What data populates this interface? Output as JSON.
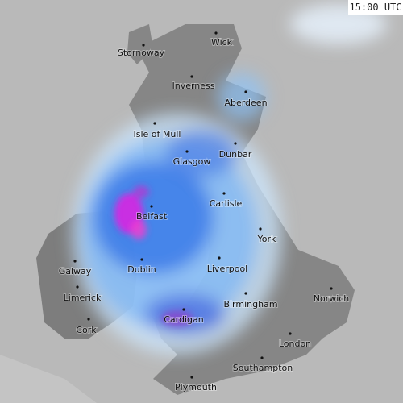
{
  "time": "15:00 UTC",
  "places": [
    "Stornoway",
    "Wick",
    "Inverness",
    "Aberdeen",
    "Isle of Mull",
    "Dunbar",
    "Glasgow",
    "Carlisle",
    "Belfast",
    "York",
    "Galway",
    "Dublin",
    "Liverpool",
    "Limerick",
    "Norwich",
    "Birmingham",
    "Cork",
    "Cardigan",
    "London",
    "Southampton",
    "Plymouth"
  ]
}
